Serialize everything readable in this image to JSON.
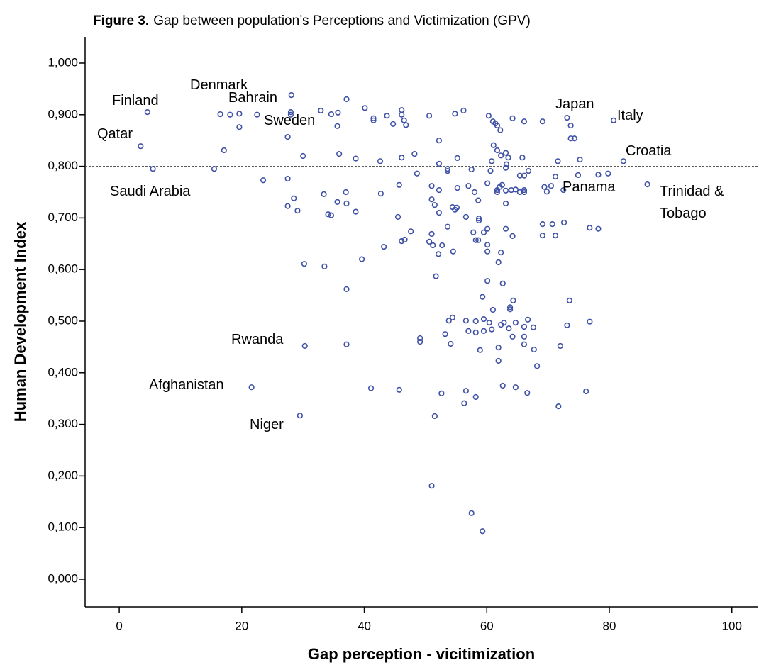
{
  "chart_data": {
    "type": "scatter",
    "figure_label": "Figure 3.",
    "title": "Gap between population’s Perceptions and Victimization (GPV)",
    "x_label": "Gap perception - vicitimization",
    "y_label": "Human Development Index",
    "color": "#3f51a6",
    "reference_line": 0.8,
    "xlim": [
      -5.57,
      104.2
    ],
    "ylim": [
      -0.0536,
      1.0508
    ],
    "xticks": [
      0,
      20,
      40,
      60,
      80,
      100
    ],
    "yticks": [
      {
        "value": 0,
        "label": "0,000"
      },
      {
        "value": 0.1,
        "label": "0,100"
      },
      {
        "value": 0.2,
        "label": "0,200"
      },
      {
        "value": 0.3,
        "label": "0,300"
      },
      {
        "value": 0.4,
        "label": "0,400"
      },
      {
        "value": 0.5,
        "label": "0,500"
      },
      {
        "value": 0.6,
        "label": "0,600"
      },
      {
        "value": 0.7,
        "label": "0,700"
      },
      {
        "value": 0.8,
        "label": "0,800"
      },
      {
        "value": 0.9,
        "label": "0,900"
      },
      {
        "value": 1,
        "label": "1,000"
      }
    ],
    "annotations": [
      "Finland",
      "Denmark",
      "Bahrain",
      "Sweden",
      "Qatar",
      "Saudi Arabia",
      "Japan",
      "Italy",
      "Croatia",
      "Panama",
      "Trinidad & Tobago",
      "Rwanda",
      "Afghanistan",
      "Niger"
    ],
    "x": [
      4.6,
      3.5,
      5.5,
      16.5,
      18.1,
      19.6,
      19.6,
      17.1,
      15.5,
      22.5,
      28.1,
      28.0,
      28.0,
      27.5,
      23.5,
      27.5,
      27.5,
      28.5,
      29.1,
      30.0,
      32.9,
      34.6,
      35.7,
      35.6,
      37.1,
      35.9,
      38.6,
      33.4,
      37.0,
      37.1,
      35.6,
      34.1,
      34.6,
      38.6,
      40.1,
      41.5,
      41.5,
      43.7,
      44.7,
      46.1,
      46.1,
      46.5,
      46.8,
      42.6,
      46.1,
      48.2,
      48.6,
      42.7,
      45.7,
      45.5,
      47.6,
      46.6,
      46.1,
      43.2,
      30.2,
      33.5,
      39.6,
      37.1,
      50.6,
      52.2,
      54.8,
      56.2,
      52.2,
      53.6,
      53.6,
      55.2,
      57.5,
      51.0,
      52.2,
      55.2,
      57.0,
      58.0,
      51.0,
      51.5,
      54.4,
      54.8,
      55.1,
      52.2,
      56.6,
      58.6,
      58.7,
      53.6,
      57.8,
      51.0,
      50.6,
      51.2,
      52.7,
      52.1,
      54.5,
      58.2,
      58.6,
      59.5,
      60.1,
      60.1,
      60.1,
      58.7,
      51.7,
      60.3,
      61.0,
      61.4,
      61.7,
      62.2,
      64.2,
      66.1,
      61.1,
      61.7,
      62.3,
      63.1,
      63.5,
      65.8,
      60.8,
      63.2,
      63.1,
      66.8,
      65.4,
      66.1,
      60.6,
      60.1,
      61.7,
      61.7,
      62.1,
      62.5,
      63.1,
      64.0,
      64.7,
      65.4,
      66.1,
      66.1,
      63.1,
      64.2,
      63.1,
      62.3,
      61.9,
      62.6,
      60.1,
      69.1,
      69.1,
      69.4,
      69.8,
      70.5,
      71.2,
      70.7,
      71.2,
      71.6,
      72.6,
      72.5,
      69.1,
      73.1,
      73.7,
      73.7,
      74.3,
      75.2,
      74.9,
      76.8,
      78.2,
      78.2,
      79.8,
      80.7,
      82.3,
      86.2,
      30.3,
      37.1,
      21.6,
      29.5,
      41.1,
      45.7,
      49.1,
      49.1,
      53.2,
      53.8,
      54.4,
      54.1,
      52.6,
      51.5,
      51.0,
      57.5,
      59.3,
      56.6,
      57.0,
      58.2,
      58.2,
      59.5,
      59.5,
      60.4,
      60.8,
      59.3,
      61.0,
      58.9,
      61.9,
      61.9,
      62.3,
      62.8,
      63.6,
      63.8,
      63.8,
      64.3,
      64.2,
      64.7,
      66.1,
      66.1,
      66.1,
      66.7,
      67.6,
      67.7,
      68.2,
      73.1,
      73.5,
      76.8,
      72.0,
      56.6,
      56.3,
      58.2,
      62.6,
      64.7,
      66.6,
      71.7,
      76.2
    ],
    "values": [
      0.905,
      0.839,
      0.795,
      0.901,
      0.9,
      0.902,
      0.876,
      0.831,
      0.795,
      0.9,
      0.938,
      0.905,
      0.9,
      0.857,
      0.773,
      0.776,
      0.723,
      0.738,
      0.714,
      0.82,
      0.908,
      0.901,
      0.904,
      0.878,
      0.93,
      0.824,
      0.815,
      0.746,
      0.75,
      0.728,
      0.731,
      0.707,
      0.705,
      0.712,
      0.913,
      0.893,
      0.889,
      0.898,
      0.882,
      0.909,
      0.9,
      0.889,
      0.88,
      0.81,
      0.817,
      0.824,
      0.786,
      0.747,
      0.764,
      0.702,
      0.674,
      0.658,
      0.655,
      0.644,
      0.611,
      0.606,
      0.62,
      0.562,
      0.898,
      0.85,
      0.902,
      0.908,
      0.805,
      0.795,
      0.791,
      0.816,
      0.794,
      0.762,
      0.754,
      0.758,
      0.762,
      0.75,
      0.736,
      0.725,
      0.721,
      0.716,
      0.72,
      0.71,
      0.702,
      0.734,
      0.699,
      0.683,
      0.672,
      0.669,
      0.654,
      0.647,
      0.647,
      0.63,
      0.635,
      0.657,
      0.657,
      0.672,
      0.679,
      0.648,
      0.635,
      0.695,
      0.587,
      0.898,
      0.887,
      0.883,
      0.879,
      0.87,
      0.893,
      0.887,
      0.841,
      0.831,
      0.821,
      0.826,
      0.817,
      0.817,
      0.81,
      0.804,
      0.797,
      0.791,
      0.782,
      0.782,
      0.791,
      0.767,
      0.754,
      0.75,
      0.76,
      0.764,
      0.753,
      0.754,
      0.755,
      0.75,
      0.754,
      0.75,
      0.728,
      0.665,
      0.679,
      0.633,
      0.614,
      0.573,
      0.578,
      0.688,
      0.666,
      0.76,
      0.751,
      0.762,
      0.78,
      0.688,
      0.666,
      0.81,
      0.691,
      0.754,
      0.887,
      0.894,
      0.879,
      0.854,
      0.854,
      0.813,
      0.783,
      0.681,
      0.679,
      0.784,
      0.786,
      0.889,
      0.81,
      0.765,
      0.452,
      0.455,
      0.372,
      0.317,
      0.37,
      0.367,
      0.467,
      0.46,
      0.475,
      0.501,
      0.507,
      0.456,
      0.36,
      0.316,
      0.181,
      0.128,
      0.093,
      0.501,
      0.481,
      0.5,
      0.478,
      0.504,
      0.481,
      0.497,
      0.484,
      0.547,
      0.522,
      0.444,
      0.449,
      0.423,
      0.493,
      0.497,
      0.486,
      0.527,
      0.523,
      0.54,
      0.47,
      0.497,
      0.489,
      0.47,
      0.455,
      0.503,
      0.488,
      0.445,
      0.413,
      0.492,
      0.54,
      0.499,
      0.452,
      0.365,
      0.341,
      0.353,
      0.375,
      0.372,
      0.361,
      0.335,
      0.364
    ]
  }
}
